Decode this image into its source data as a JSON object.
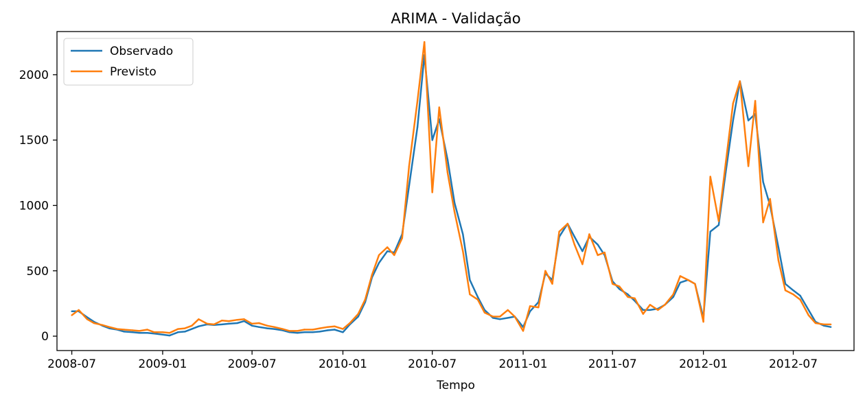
{
  "chart_data": {
    "type": "line",
    "title": "ARIMA - Validação",
    "xlabel": "Tempo",
    "ylabel": "",
    "xlim": [
      "2008-06-01",
      "2012-11-01"
    ],
    "ylim": [
      -110,
      2330
    ],
    "x_ticks": [
      "2008-07-01",
      "2009-01-01",
      "2009-07-01",
      "2010-01-01",
      "2010-07-01",
      "2011-01-01",
      "2011-07-01",
      "2012-01-01",
      "2012-07-01"
    ],
    "x_tick_labels": [
      "2008-07",
      "2009-01",
      "2009-07",
      "2010-01",
      "2010-07",
      "2011-01",
      "2011-07",
      "2012-01",
      "2012-07"
    ],
    "y_ticks": [
      0,
      500,
      1000,
      1500,
      2000
    ],
    "y_tick_labels": [
      "0",
      "500",
      "1000",
      "1500",
      "2000"
    ],
    "legend": {
      "position": "top-left"
    },
    "grid": false,
    "series": [
      {
        "name": "Observado",
        "color": "#1f77b4",
        "points": [
          [
            "2008-07-01",
            190
          ],
          [
            "2008-07-15",
            190
          ],
          [
            "2008-08-01",
            145
          ],
          [
            "2008-08-15",
            110
          ],
          [
            "2008-09-01",
            80
          ],
          [
            "2008-09-15",
            60
          ],
          [
            "2008-10-01",
            50
          ],
          [
            "2008-10-15",
            35
          ],
          [
            "2008-11-01",
            30
          ],
          [
            "2008-11-15",
            25
          ],
          [
            "2008-12-01",
            25
          ],
          [
            "2008-12-15",
            20
          ],
          [
            "2009-01-01",
            12
          ],
          [
            "2009-01-15",
            5
          ],
          [
            "2009-02-01",
            30
          ],
          [
            "2009-02-15",
            35
          ],
          [
            "2009-03-01",
            55
          ],
          [
            "2009-03-15",
            75
          ],
          [
            "2009-04-01",
            90
          ],
          [
            "2009-04-15",
            85
          ],
          [
            "2009-05-01",
            90
          ],
          [
            "2009-05-15",
            95
          ],
          [
            "2009-06-01",
            100
          ],
          [
            "2009-06-15",
            115
          ],
          [
            "2009-07-01",
            80
          ],
          [
            "2009-07-15",
            70
          ],
          [
            "2009-08-01",
            60
          ],
          [
            "2009-08-15",
            55
          ],
          [
            "2009-09-01",
            45
          ],
          [
            "2009-09-15",
            30
          ],
          [
            "2009-10-01",
            25
          ],
          [
            "2009-10-15",
            30
          ],
          [
            "2009-11-01",
            30
          ],
          [
            "2009-11-15",
            35
          ],
          [
            "2009-12-01",
            45
          ],
          [
            "2009-12-15",
            50
          ],
          [
            "2010-01-01",
            30
          ],
          [
            "2010-01-15",
            90
          ],
          [
            "2010-02-01",
            150
          ],
          [
            "2010-02-15",
            260
          ],
          [
            "2010-03-01",
            450
          ],
          [
            "2010-03-15",
            560
          ],
          [
            "2010-04-01",
            650
          ],
          [
            "2010-04-15",
            640
          ],
          [
            "2010-05-01",
            780
          ],
          [
            "2010-05-15",
            1150
          ],
          [
            "2010-06-01",
            1600
          ],
          [
            "2010-06-15",
            2150
          ],
          [
            "2010-07-01",
            1500
          ],
          [
            "2010-07-15",
            1660
          ],
          [
            "2010-08-01",
            1350
          ],
          [
            "2010-08-15",
            1020
          ],
          [
            "2010-09-01",
            780
          ],
          [
            "2010-09-15",
            430
          ],
          [
            "2010-10-01",
            300
          ],
          [
            "2010-10-15",
            200
          ],
          [
            "2010-11-01",
            140
          ],
          [
            "2010-11-15",
            130
          ],
          [
            "2010-12-01",
            140
          ],
          [
            "2010-12-15",
            150
          ],
          [
            "2011-01-01",
            70
          ],
          [
            "2011-01-15",
            190
          ],
          [
            "2011-02-01",
            260
          ],
          [
            "2011-02-15",
            480
          ],
          [
            "2011-03-01",
            430
          ],
          [
            "2011-03-15",
            760
          ],
          [
            "2011-04-01",
            860
          ],
          [
            "2011-04-15",
            760
          ],
          [
            "2011-05-01",
            650
          ],
          [
            "2011-05-15",
            760
          ],
          [
            "2011-06-01",
            700
          ],
          [
            "2011-06-15",
            620
          ],
          [
            "2011-07-01",
            420
          ],
          [
            "2011-07-15",
            360
          ],
          [
            "2011-08-01",
            320
          ],
          [
            "2011-08-15",
            270
          ],
          [
            "2011-09-01",
            200
          ],
          [
            "2011-09-15",
            200
          ],
          [
            "2011-10-01",
            210
          ],
          [
            "2011-10-15",
            240
          ],
          [
            "2011-11-01",
            300
          ],
          [
            "2011-11-15",
            410
          ],
          [
            "2011-12-01",
            430
          ],
          [
            "2011-12-15",
            400
          ],
          [
            "2012-01-01",
            140
          ],
          [
            "2012-01-15",
            800
          ],
          [
            "2012-02-01",
            850
          ],
          [
            "2012-02-15",
            1250
          ],
          [
            "2012-03-01",
            1650
          ],
          [
            "2012-03-15",
            1950
          ],
          [
            "2012-04-01",
            1650
          ],
          [
            "2012-04-15",
            1700
          ],
          [
            "2012-05-01",
            1180
          ],
          [
            "2012-05-15",
            1000
          ],
          [
            "2012-06-01",
            680
          ],
          [
            "2012-06-15",
            400
          ],
          [
            "2012-07-01",
            350
          ],
          [
            "2012-07-15",
            310
          ],
          [
            "2012-08-01",
            200
          ],
          [
            "2012-08-15",
            110
          ],
          [
            "2012-09-01",
            80
          ],
          [
            "2012-09-15",
            70
          ]
        ]
      },
      {
        "name": "Previsto",
        "color": "#ff7f0e",
        "points": [
          [
            "2008-07-01",
            160
          ],
          [
            "2008-07-15",
            200
          ],
          [
            "2008-08-01",
            130
          ],
          [
            "2008-08-15",
            100
          ],
          [
            "2008-09-01",
            85
          ],
          [
            "2008-09-15",
            70
          ],
          [
            "2008-10-01",
            55
          ],
          [
            "2008-10-15",
            50
          ],
          [
            "2008-11-01",
            45
          ],
          [
            "2008-11-15",
            40
          ],
          [
            "2008-12-01",
            50
          ],
          [
            "2008-12-15",
            30
          ],
          [
            "2009-01-01",
            30
          ],
          [
            "2009-01-15",
            25
          ],
          [
            "2009-02-01",
            55
          ],
          [
            "2009-02-15",
            60
          ],
          [
            "2009-03-01",
            80
          ],
          [
            "2009-03-15",
            130
          ],
          [
            "2009-04-01",
            95
          ],
          [
            "2009-04-15",
            90
          ],
          [
            "2009-05-01",
            120
          ],
          [
            "2009-05-15",
            115
          ],
          [
            "2009-06-01",
            125
          ],
          [
            "2009-06-15",
            130
          ],
          [
            "2009-07-01",
            95
          ],
          [
            "2009-07-15",
            100
          ],
          [
            "2009-08-01",
            80
          ],
          [
            "2009-08-15",
            70
          ],
          [
            "2009-09-01",
            55
          ],
          [
            "2009-09-15",
            40
          ],
          [
            "2009-10-01",
            40
          ],
          [
            "2009-10-15",
            50
          ],
          [
            "2009-11-01",
            50
          ],
          [
            "2009-11-15",
            60
          ],
          [
            "2009-12-01",
            70
          ],
          [
            "2009-12-15",
            75
          ],
          [
            "2010-01-01",
            55
          ],
          [
            "2010-01-15",
            100
          ],
          [
            "2010-02-01",
            170
          ],
          [
            "2010-02-15",
            280
          ],
          [
            "2010-03-01",
            470
          ],
          [
            "2010-03-15",
            620
          ],
          [
            "2010-04-01",
            680
          ],
          [
            "2010-04-15",
            620
          ],
          [
            "2010-05-01",
            750
          ],
          [
            "2010-05-15",
            1300
          ],
          [
            "2010-06-01",
            1800
          ],
          [
            "2010-06-15",
            2250
          ],
          [
            "2010-07-01",
            1100
          ],
          [
            "2010-07-15",
            1750
          ],
          [
            "2010-08-01",
            1250
          ],
          [
            "2010-08-15",
            950
          ],
          [
            "2010-09-01",
            650
          ],
          [
            "2010-09-15",
            320
          ],
          [
            "2010-10-01",
            280
          ],
          [
            "2010-10-15",
            180
          ],
          [
            "2010-11-01",
            150
          ],
          [
            "2010-11-15",
            150
          ],
          [
            "2010-12-01",
            200
          ],
          [
            "2010-12-15",
            150
          ],
          [
            "2011-01-01",
            40
          ],
          [
            "2011-01-15",
            230
          ],
          [
            "2011-02-01",
            220
          ],
          [
            "2011-02-15",
            500
          ],
          [
            "2011-03-01",
            400
          ],
          [
            "2011-03-15",
            800
          ],
          [
            "2011-04-01",
            860
          ],
          [
            "2011-04-15",
            700
          ],
          [
            "2011-05-01",
            550
          ],
          [
            "2011-05-15",
            780
          ],
          [
            "2011-06-01",
            620
          ],
          [
            "2011-06-15",
            640
          ],
          [
            "2011-07-01",
            400
          ],
          [
            "2011-07-15",
            380
          ],
          [
            "2011-08-01",
            300
          ],
          [
            "2011-08-15",
            290
          ],
          [
            "2011-09-01",
            170
          ],
          [
            "2011-09-15",
            240
          ],
          [
            "2011-10-01",
            200
          ],
          [
            "2011-10-15",
            240
          ],
          [
            "2011-11-01",
            320
          ],
          [
            "2011-11-15",
            460
          ],
          [
            "2011-12-01",
            430
          ],
          [
            "2011-12-15",
            400
          ],
          [
            "2012-01-01",
            110
          ],
          [
            "2012-01-15",
            1220
          ],
          [
            "2012-02-01",
            880
          ],
          [
            "2012-02-15",
            1320
          ],
          [
            "2012-03-01",
            1780
          ],
          [
            "2012-03-15",
            1950
          ],
          [
            "2012-04-01",
            1300
          ],
          [
            "2012-04-15",
            1800
          ],
          [
            "2012-05-01",
            870
          ],
          [
            "2012-05-15",
            1050
          ],
          [
            "2012-06-01",
            580
          ],
          [
            "2012-06-15",
            350
          ],
          [
            "2012-07-01",
            320
          ],
          [
            "2012-07-15",
            280
          ],
          [
            "2012-08-01",
            160
          ],
          [
            "2012-08-15",
            100
          ],
          [
            "2012-09-01",
            90
          ],
          [
            "2012-09-15",
            90
          ]
        ]
      }
    ]
  }
}
